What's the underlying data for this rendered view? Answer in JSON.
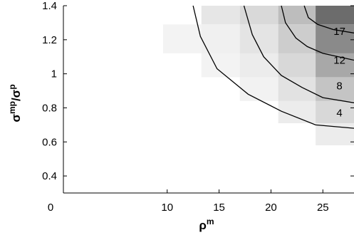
{
  "chart_data": {
    "type": "heatmap",
    "title": "",
    "xlabel": {
      "base": "ρ",
      "sup": "m"
    },
    "ylabel": {
      "base": "σ",
      "sup": "mp",
      "slash": "/",
      "base2": "σ",
      "sup2": "p"
    },
    "xlim": [
      0,
      28
    ],
    "ylim": [
      0.3,
      1.4
    ],
    "x_ticks": [
      {
        "value": 0,
        "label": "0"
      },
      {
        "value": 10,
        "label": "10"
      },
      {
        "value": 15,
        "label": "15"
      },
      {
        "value": 20,
        "label": "20"
      },
      {
        "value": 25,
        "label": "25"
      }
    ],
    "y_ticks": [
      {
        "value": 0.4,
        "label": "0.4"
      },
      {
        "value": 0.6,
        "label": "0.6"
      },
      {
        "value": 0.8,
        "label": "0.8"
      },
      {
        "value": 1.0,
        "label": "1"
      },
      {
        "value": 1.2,
        "label": "1.2"
      },
      {
        "value": 1.4,
        "label": "1.4"
      }
    ],
    "heatmap_cells": [
      {
        "x0": 9.6,
        "x1": 13.3,
        "y0": 1.12,
        "y1": 1.29,
        "shade": "#f3f3f3"
      },
      {
        "x0": 13.3,
        "x1": 17.0,
        "y0": 1.29,
        "y1": 1.4,
        "shade": "#e6e6e6"
      },
      {
        "x0": 13.3,
        "x1": 17.0,
        "y0": 1.12,
        "y1": 1.29,
        "shade": "#f0f0f0"
      },
      {
        "x0": 13.3,
        "x1": 17.0,
        "y0": 0.98,
        "y1": 1.12,
        "shade": "#f3f3f3"
      },
      {
        "x0": 17.0,
        "x1": 20.7,
        "y0": 1.29,
        "y1": 1.4,
        "shade": "#d9d9d9"
      },
      {
        "x0": 17.0,
        "x1": 20.7,
        "y0": 1.12,
        "y1": 1.29,
        "shade": "#e4e4e4"
      },
      {
        "x0": 17.0,
        "x1": 20.7,
        "y0": 0.98,
        "y1": 1.12,
        "shade": "#ececec"
      },
      {
        "x0": 17.0,
        "x1": 20.7,
        "y0": 0.84,
        "y1": 0.98,
        "shade": "#f2f2f2"
      },
      {
        "x0": 20.7,
        "x1": 24.3,
        "y0": 1.29,
        "y1": 1.4,
        "shade": "#bdbdbd"
      },
      {
        "x0": 20.7,
        "x1": 24.3,
        "y0": 1.12,
        "y1": 1.29,
        "shade": "#cdcdcd"
      },
      {
        "x0": 20.7,
        "x1": 24.3,
        "y0": 0.98,
        "y1": 1.12,
        "shade": "#d8d8d8"
      },
      {
        "x0": 20.7,
        "x1": 24.3,
        "y0": 0.84,
        "y1": 0.98,
        "shade": "#e2e2e2"
      },
      {
        "x0": 20.7,
        "x1": 24.3,
        "y0": 0.71,
        "y1": 0.84,
        "shade": "#ececec"
      },
      {
        "x0": 24.3,
        "x1": 28.0,
        "y0": 1.29,
        "y1": 1.4,
        "shade": "#6c6c6c"
      },
      {
        "x0": 24.3,
        "x1": 28.0,
        "y0": 1.12,
        "y1": 1.29,
        "shade": "#8a8a8a"
      },
      {
        "x0": 24.3,
        "x1": 28.0,
        "y0": 0.98,
        "y1": 1.12,
        "shade": "#a8a8a8"
      },
      {
        "x0": 24.3,
        "x1": 28.0,
        "y0": 0.84,
        "y1": 0.98,
        "shade": "#c4c4c4"
      },
      {
        "x0": 24.3,
        "x1": 28.0,
        "y0": 0.71,
        "y1": 0.84,
        "shade": "#d8d8d8"
      },
      {
        "x0": 24.3,
        "x1": 28.0,
        "y0": 0.58,
        "y1": 0.71,
        "shade": "#ececec"
      }
    ],
    "contours": [
      {
        "label": "4",
        "label_at": [
          26.6,
          0.77
        ],
        "points": [
          [
            12.5,
            1.4
          ],
          [
            13.2,
            1.22
          ],
          [
            14.8,
            1.03
          ],
          [
            17.8,
            0.88
          ],
          [
            21.0,
            0.78
          ],
          [
            24.3,
            0.7
          ],
          [
            28.0,
            0.68
          ]
        ]
      },
      {
        "label": "8",
        "label_at": [
          26.6,
          0.93
        ],
        "points": [
          [
            17.4,
            1.4
          ],
          [
            18.2,
            1.23
          ],
          [
            19.3,
            1.1
          ],
          [
            21.0,
            0.99
          ],
          [
            23.0,
            0.92
          ],
          [
            25.0,
            0.86
          ],
          [
            28.0,
            0.83
          ]
        ]
      },
      {
        "label": "12",
        "label_at": [
          26.6,
          1.08
        ],
        "points": [
          [
            21.0,
            1.4
          ],
          [
            21.4,
            1.3
          ],
          [
            22.4,
            1.21
          ],
          [
            23.5,
            1.16
          ],
          [
            25.0,
            1.12
          ],
          [
            28.0,
            1.08
          ]
        ]
      },
      {
        "label": "17",
        "label_at": [
          26.6,
          1.25
        ],
        "points": [
          [
            23.2,
            1.4
          ],
          [
            23.6,
            1.33
          ],
          [
            24.5,
            1.29
          ],
          [
            26.0,
            1.26
          ],
          [
            28.0,
            1.24
          ]
        ]
      }
    ],
    "grid": false,
    "legend": "none"
  }
}
